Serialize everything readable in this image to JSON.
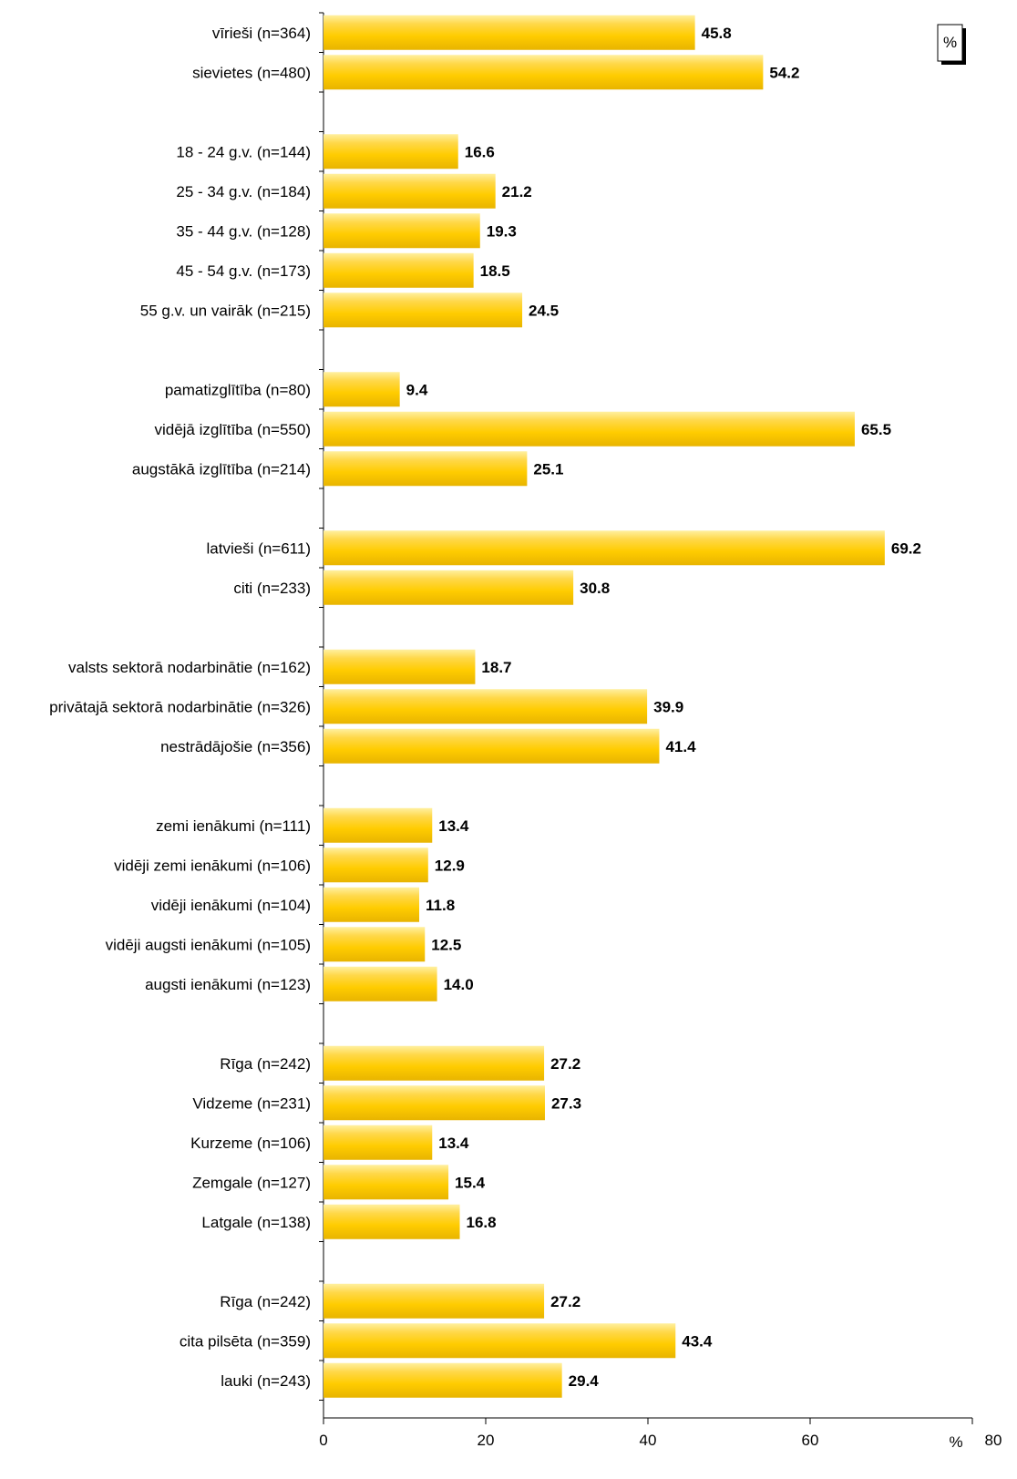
{
  "chart_data": {
    "type": "bar",
    "orientation": "horizontal",
    "unit_box_label": "%",
    "x_unit_label": "%",
    "xlim": [
      0,
      80
    ],
    "x_ticks": [
      0,
      20,
      40,
      60,
      80
    ],
    "grid": false,
    "bar_color": "#FFCC00",
    "groups": [
      {
        "items": [
          {
            "label": "vīrieši (n=364)",
            "value": 45.8
          },
          {
            "label": "sievietes (n=480)",
            "value": 54.2
          }
        ]
      },
      {
        "items": [
          {
            "label": "18 - 24 g.v. (n=144)",
            "value": 16.6
          },
          {
            "label": "25 - 34 g.v. (n=184)",
            "value": 21.2
          },
          {
            "label": "35 - 44 g.v. (n=128)",
            "value": 19.3
          },
          {
            "label": "45 - 54 g.v. (n=173)",
            "value": 18.5
          },
          {
            "label": "55 g.v. un vairāk (n=215)",
            "value": 24.5
          }
        ]
      },
      {
        "items": [
          {
            "label": "pamatizglītība (n=80)",
            "value": 9.4
          },
          {
            "label": "vidējā izglītība (n=550)",
            "value": 65.5
          },
          {
            "label": "augstākā izglītība (n=214)",
            "value": 25.1
          }
        ]
      },
      {
        "items": [
          {
            "label": "latvieši (n=611)",
            "value": 69.2
          },
          {
            "label": "citi (n=233)",
            "value": 30.8
          }
        ]
      },
      {
        "items": [
          {
            "label": "valsts sektorā nodarbinātie (n=162)",
            "value": 18.7
          },
          {
            "label": "privātajā sektorā nodarbinātie (n=326)",
            "value": 39.9
          },
          {
            "label": "nestrādājošie (n=356)",
            "value": 41.4
          }
        ]
      },
      {
        "items": [
          {
            "label": "zemi ienākumi (n=111)",
            "value": 13.4
          },
          {
            "label": "vidēji zemi ienākumi (n=106)",
            "value": 12.9
          },
          {
            "label": "vidēji ienākumi (n=104)",
            "value": 11.8
          },
          {
            "label": "vidēji augsti ienākumi (n=105)",
            "value": 12.5
          },
          {
            "label": "augsti ienākumi (n=123)",
            "value": 14.0
          }
        ]
      },
      {
        "items": [
          {
            "label": "Rīga (n=242)",
            "value": 27.2
          },
          {
            "label": "Vidzeme (n=231)",
            "value": 27.3
          },
          {
            "label": "Kurzeme (n=106)",
            "value": 13.4
          },
          {
            "label": "Zemgale (n=127)",
            "value": 15.4
          },
          {
            "label": "Latgale (n=138)",
            "value": 16.8
          }
        ]
      },
      {
        "items": [
          {
            "label": "Rīga (n=242)",
            "value": 27.2
          },
          {
            "label": "cita pilsēta (n=359)",
            "value": 43.4
          },
          {
            "label": "lauki (n=243)",
            "value": 29.4
          }
        ]
      }
    ]
  }
}
